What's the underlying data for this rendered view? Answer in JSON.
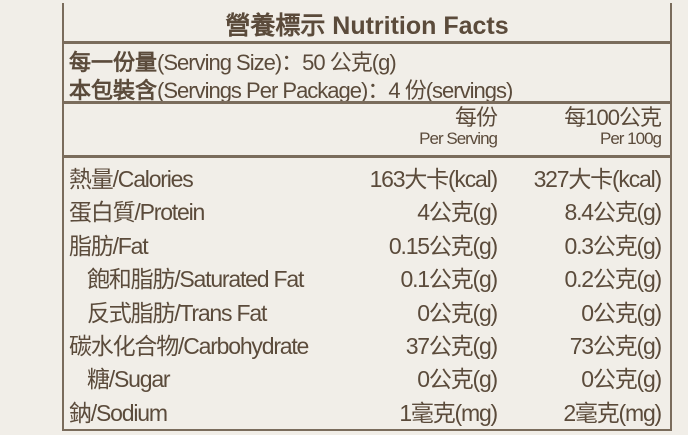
{
  "title": "營養標示 Nutrition Facts",
  "serving_size": {
    "label_zh": "每一份量",
    "label_en": "(Serving Size)",
    "value": "：50 公克(g)"
  },
  "servings_per_package": {
    "label_zh": "本包裝含",
    "label_en": "(Servings Per Package)",
    "value": "：4 份(servings)"
  },
  "columns": [
    {
      "zh": "每份",
      "en": "Per Serving"
    },
    {
      "zh": "每100公克",
      "en": "Per 100g"
    }
  ],
  "rows": [
    {
      "label": "熱量/Calories",
      "per_serving": "163大卡(kcal)",
      "per_100g": "327大卡(kcal)"
    },
    {
      "label": "蛋白質/Protein",
      "per_serving": "4公克(g)",
      "per_100g": "8.4公克(g)"
    },
    {
      "label": "脂肪/Fat",
      "per_serving": "0.15公克(g)",
      "per_100g": "0.3公克(g)"
    },
    {
      "label": "飽和脂肪/Saturated Fat",
      "per_serving": "0.1公克(g)",
      "per_100g": "0.2公克(g)"
    },
    {
      "label": "反式脂肪/Trans Fat",
      "per_serving": "0公克(g)",
      "per_100g": "0公克(g)"
    },
    {
      "label": "碳水化合物/Carbohydrate",
      "per_serving": "37公克(g)",
      "per_100g": "73公克(g)"
    },
    {
      "label": "糖/Sugar",
      "per_serving": "0公克(g)",
      "per_100g": "0公克(g)"
    },
    {
      "label": "鈉/Sodium",
      "per_serving": "1毫克(mg)",
      "per_100g": "2毫克(mg)"
    }
  ]
}
